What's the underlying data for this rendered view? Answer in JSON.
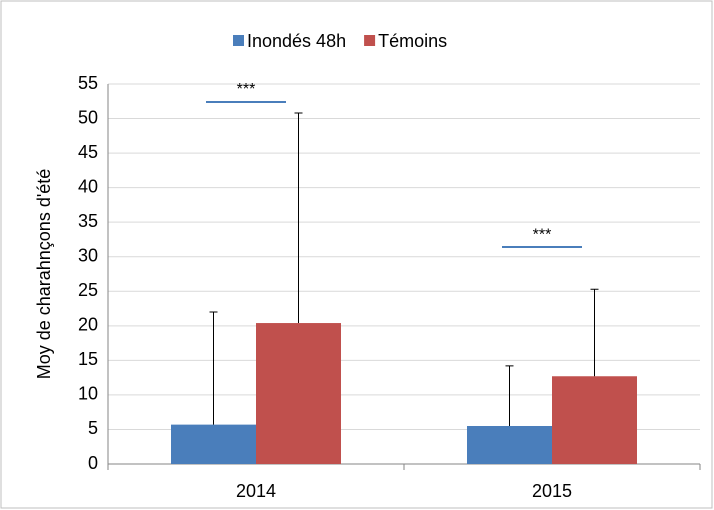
{
  "chart_data": {
    "type": "bar",
    "y_label": "Moy de charahnçons d'été",
    "categories": [
      "2014",
      "2015"
    ],
    "series": [
      {
        "name": "Inondés 48h",
        "color": "#4a7ebb",
        "values": [
          5.7,
          5.5
        ],
        "errors": [
          16.3,
          8.7
        ]
      },
      {
        "name": "Témoins",
        "color": "#c0504d",
        "values": [
          20.4,
          12.7
        ],
        "errors": [
          30.4,
          12.6
        ]
      }
    ],
    "annotations": [
      {
        "text": "***",
        "category": 0,
        "y": 52.4
      },
      {
        "text": "***",
        "category": 1,
        "y": 31.4
      }
    ],
    "ylim": [
      0,
      55
    ],
    "yticks": [
      0,
      5,
      10,
      15,
      20,
      25,
      30,
      35,
      40,
      45,
      50,
      55
    ],
    "grid": true,
    "legend": "top"
  }
}
